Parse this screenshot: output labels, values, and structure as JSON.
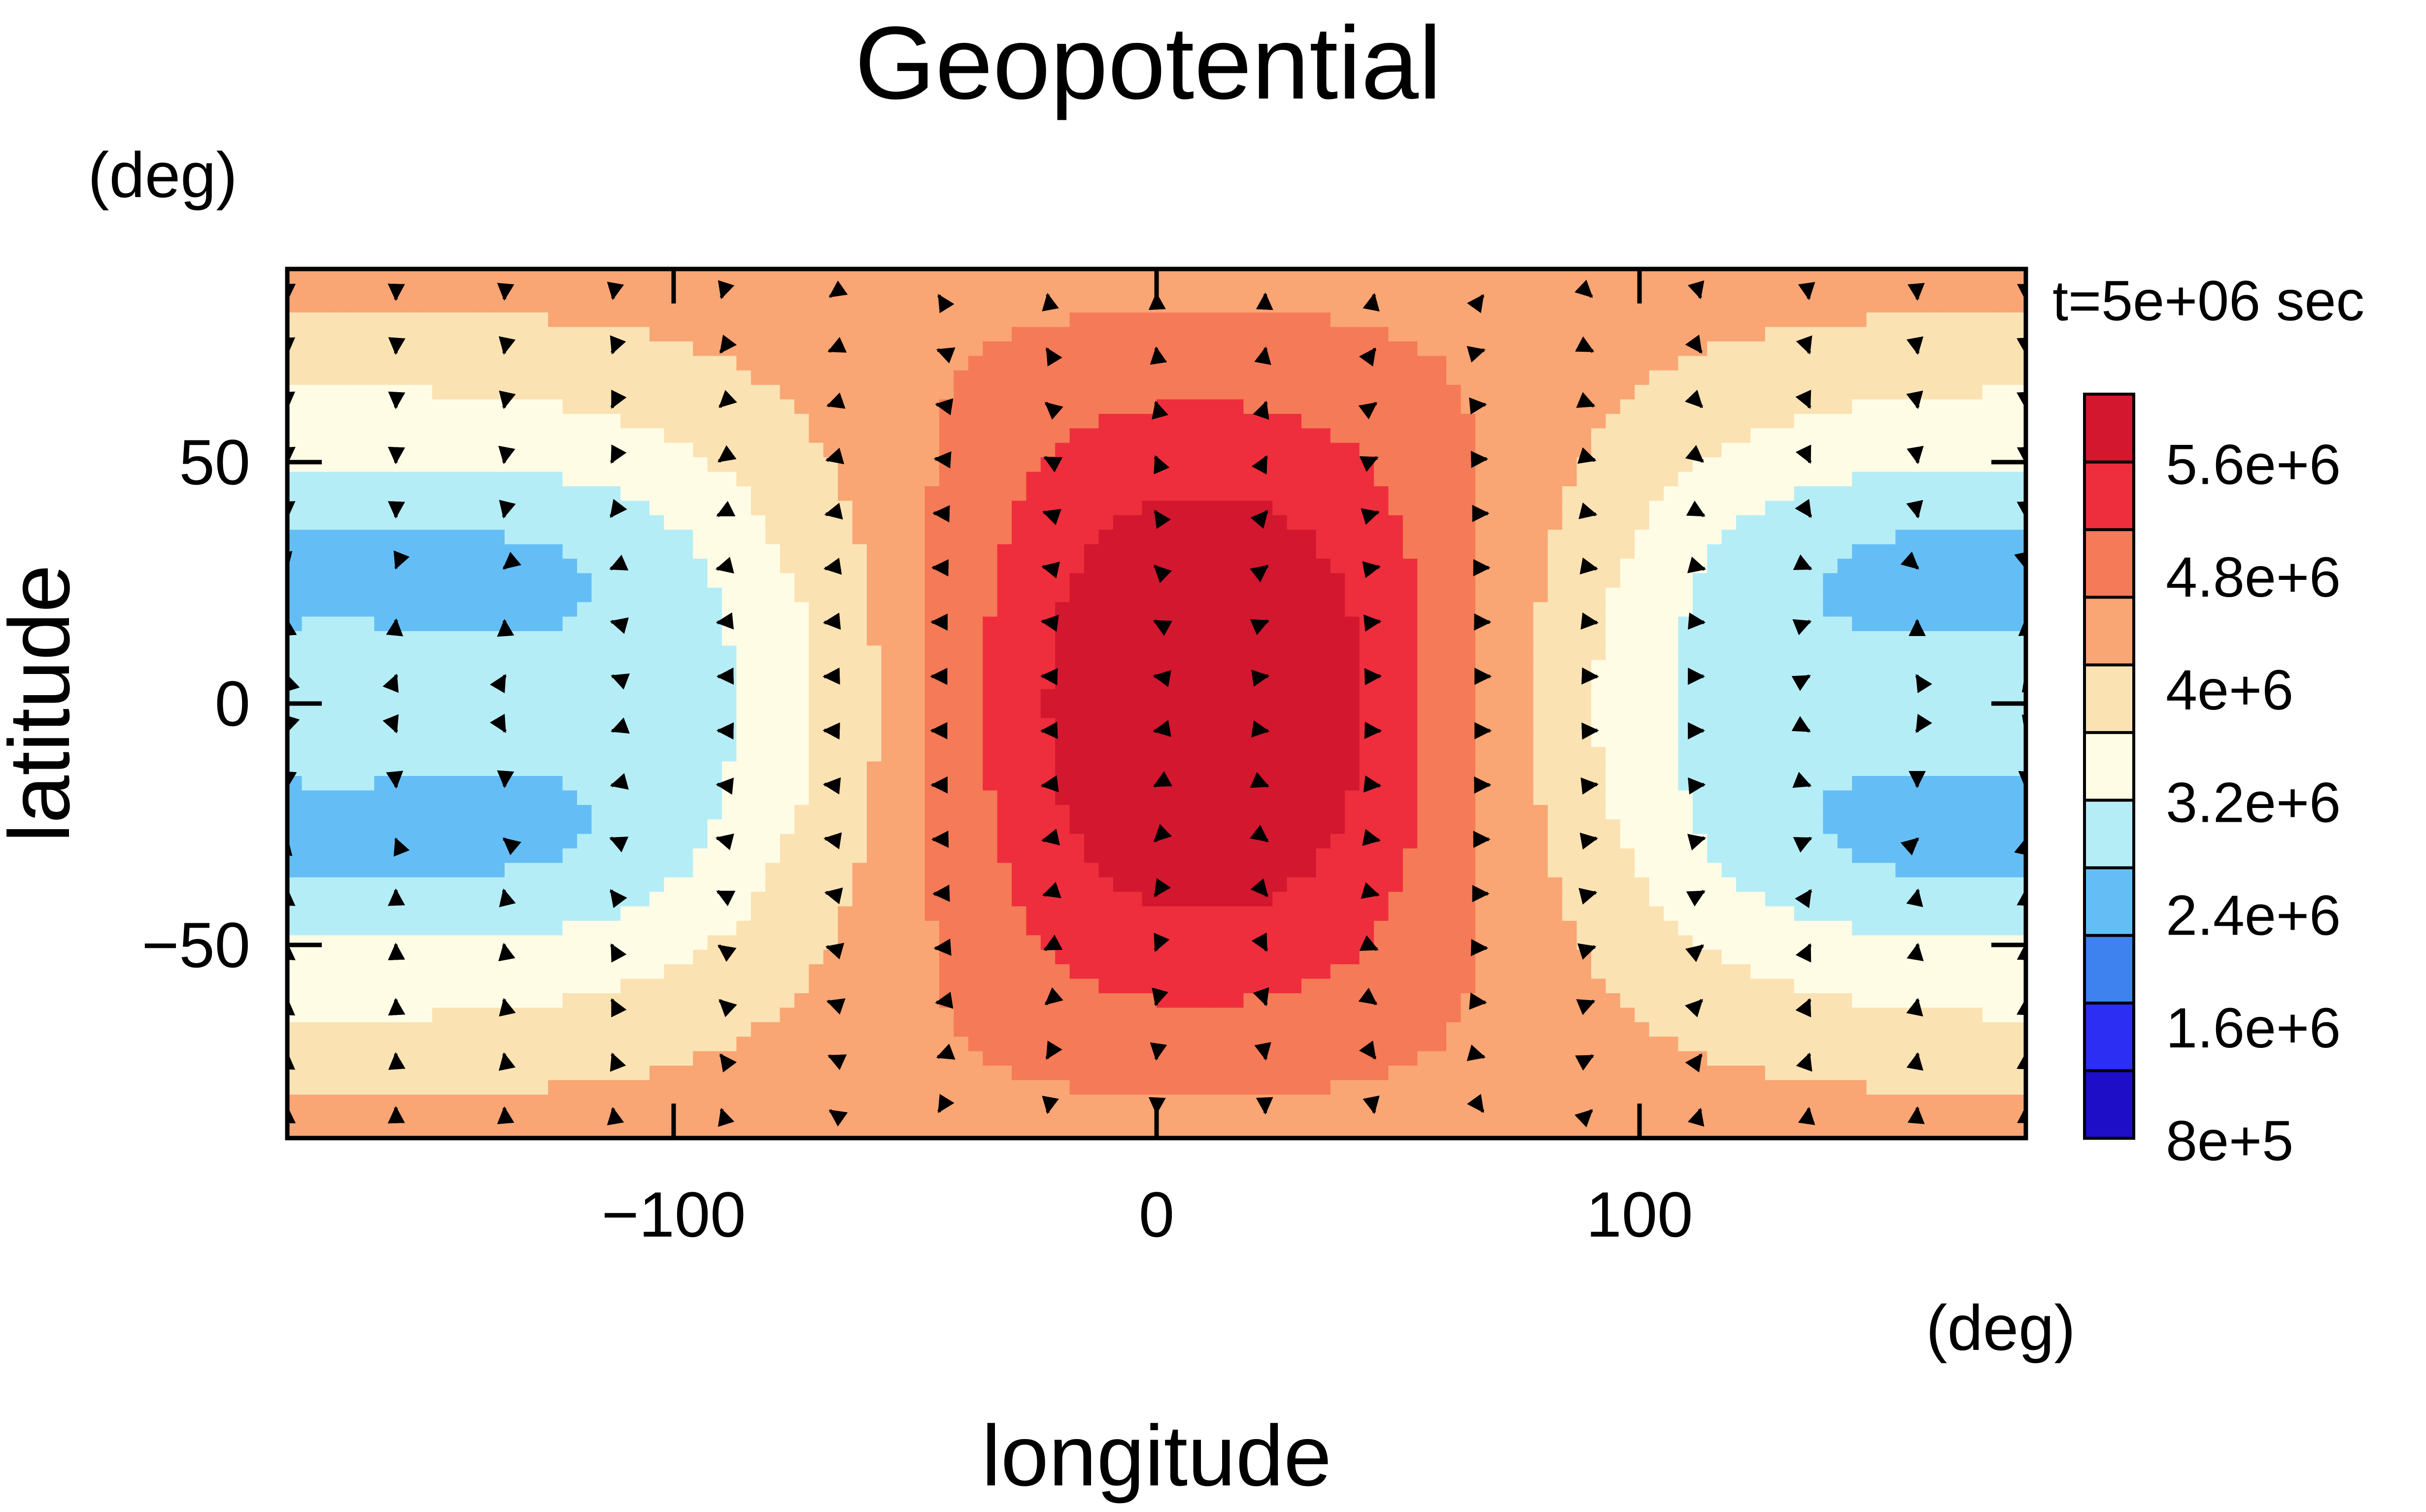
{
  "chart_data": {
    "type": "filled-contour-with-vectors",
    "title": "Geopotential",
    "xlabel": "longitude",
    "ylabel": "latitude",
    "x_unit": "(deg)",
    "y_unit": "(deg)",
    "time_label": "t=5e+06 sec",
    "xlim": [
      -180,
      180
    ],
    "ylim": [
      -90,
      90
    ],
    "x_ticks": [
      -100,
      0,
      100
    ],
    "x_tick_labels": [
      "−100",
      "0",
      "100"
    ],
    "y_ticks": [
      -50,
      0,
      50
    ],
    "y_tick_labels": [
      "−50",
      "0",
      "50"
    ],
    "field_min": 800000,
    "field_max": 6000000,
    "contour_levels": [
      800000,
      1600000,
      2400000,
      3200000,
      4000000,
      4800000,
      5600000
    ],
    "colorbar": {
      "bands": [
        {
          "color": "#1E0EC8"
        },
        {
          "color": "#2C2EF4"
        },
        {
          "color": "#3D82EE"
        },
        {
          "color": "#64BEF5"
        },
        {
          "color": "#B5EDF7"
        },
        {
          "color": "#FFFCE6"
        },
        {
          "color": "#FBE2B3"
        },
        {
          "color": "#F9A574"
        },
        {
          "color": "#F57A57"
        },
        {
          "color": "#EE2E3C"
        },
        {
          "color": "#D2172F"
        }
      ],
      "labels": [
        "8e+5",
        "1.6e+6",
        "2.4e+6",
        "3.2e+6",
        "4e+6",
        "4.8e+6",
        "5.6e+6"
      ]
    },
    "vector_grid": {
      "lon_spacing": 22.5,
      "lat_spacing": 11.25
    }
  }
}
